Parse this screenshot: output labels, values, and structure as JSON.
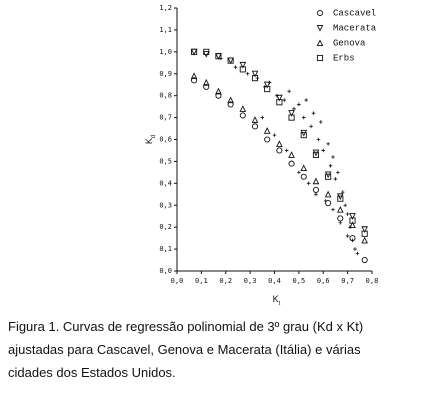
{
  "chart_data": {
    "type": "scatter",
    "xlabel": {
      "main": "K",
      "sub": "t"
    },
    "ylabel": {
      "main": "K",
      "sub": "d"
    },
    "xlim": [
      0,
      0.8
    ],
    "ylim": [
      0,
      1.2
    ],
    "xticks": [
      {
        "value": 0,
        "label": "0,0"
      },
      {
        "value": 0.1,
        "label": "0,1"
      },
      {
        "value": 0.2,
        "label": "0,2"
      },
      {
        "value": 0.3,
        "label": "0,3"
      },
      {
        "value": 0.4,
        "label": "0,4"
      },
      {
        "value": 0.5,
        "label": "0,5"
      },
      {
        "value": 0.6,
        "label": "0,6"
      },
      {
        "value": 0.7,
        "label": "0,7"
      },
      {
        "value": 0.8,
        "label": "0,8"
      }
    ],
    "yticks": [
      {
        "value": 0,
        "label": "0,0"
      },
      {
        "value": 0.1,
        "label": "0,1"
      },
      {
        "value": 0.2,
        "label": "0,2"
      },
      {
        "value": 0.3,
        "label": "0,3"
      },
      {
        "value": 0.4,
        "label": "0,4"
      },
      {
        "value": 0.5,
        "label": "0,5"
      },
      {
        "value": 0.6,
        "label": "0,6"
      },
      {
        "value": 0.7,
        "label": "0,7"
      },
      {
        "value": 0.8,
        "label": "0,8"
      },
      {
        "value": 0.9,
        "label": "0,9"
      },
      {
        "value": 1.0,
        "label": "1,0"
      },
      {
        "value": 1.1,
        "label": "1,1"
      },
      {
        "value": 1.2,
        "label": "1,2"
      }
    ],
    "series": [
      {
        "name": "Cascavel",
        "marker": "circle",
        "color": "#111111",
        "x": [
          0.07,
          0.12,
          0.17,
          0.22,
          0.27,
          0.32,
          0.37,
          0.42,
          0.47,
          0.52,
          0.57,
          0.62,
          0.67,
          0.72,
          0.77
        ],
        "values": [
          0.87,
          0.84,
          0.8,
          0.76,
          0.71,
          0.66,
          0.6,
          0.55,
          0.49,
          0.43,
          0.37,
          0.31,
          0.24,
          0.15,
          0.05
        ]
      },
      {
        "name": "Macerata",
        "marker": "triangle-down",
        "color": "#111111",
        "x": [
          0.07,
          0.12,
          0.17,
          0.22,
          0.27,
          0.32,
          0.37,
          0.42,
          0.47,
          0.52,
          0.57,
          0.62,
          0.67,
          0.72,
          0.77
        ],
        "values": [
          1.0,
          0.99,
          0.98,
          0.96,
          0.94,
          0.9,
          0.85,
          0.79,
          0.72,
          0.63,
          0.54,
          0.44,
          0.34,
          0.25,
          0.19
        ]
      },
      {
        "name": "Genova",
        "marker": "triangle-up",
        "color": "#111111",
        "x": [
          0.07,
          0.12,
          0.17,
          0.22,
          0.27,
          0.32,
          0.37,
          0.42,
          0.47,
          0.52,
          0.57,
          0.62,
          0.67,
          0.72,
          0.77
        ],
        "values": [
          0.89,
          0.86,
          0.82,
          0.78,
          0.74,
          0.69,
          0.64,
          0.58,
          0.53,
          0.47,
          0.41,
          0.35,
          0.28,
          0.21,
          0.14
        ]
      },
      {
        "name": "Erbs",
        "marker": "square",
        "color": "#111111",
        "x": [
          0.07,
          0.12,
          0.17,
          0.22,
          0.27,
          0.32,
          0.37,
          0.42,
          0.47,
          0.52,
          0.57,
          0.62,
          0.67,
          0.72,
          0.77
        ],
        "values": [
          1.0,
          1.0,
          0.98,
          0.96,
          0.92,
          0.88,
          0.83,
          0.77,
          0.7,
          0.62,
          0.53,
          0.43,
          0.33,
          0.23,
          0.17
        ]
      },
      {
        "marker": "plus",
        "color": "#111111",
        "x": [
          0.18,
          0.24,
          0.29,
          0.33,
          0.36,
          0.38,
          0.41,
          0.44,
          0.46,
          0.48,
          0.5,
          0.52,
          0.53,
          0.55,
          0.56,
          0.58,
          0.59,
          0.6,
          0.62,
          0.63,
          0.64,
          0.65,
          0.66,
          0.68,
          0.69,
          0.7,
          0.71,
          0.72,
          0.73,
          0.74,
          0.45,
          0.5,
          0.54,
          0.57,
          0.61,
          0.64,
          0.67,
          0.7,
          0.4,
          0.35
        ],
        "values": [
          0.97,
          0.93,
          0.9,
          0.88,
          0.84,
          0.86,
          0.8,
          0.78,
          0.82,
          0.74,
          0.76,
          0.7,
          0.78,
          0.66,
          0.72,
          0.6,
          0.68,
          0.55,
          0.58,
          0.48,
          0.52,
          0.42,
          0.45,
          0.36,
          0.3,
          0.26,
          0.2,
          0.14,
          0.1,
          0.08,
          0.55,
          0.45,
          0.4,
          0.35,
          0.32,
          0.28,
          0.22,
          0.16,
          0.62,
          0.7
        ]
      }
    ],
    "legend": "top-right",
    "caption": [
      "Figura 1. Curvas de regressão polinomial de 3º grau (Kd x Kt)",
      "ajustadas para Cascavel, Genova e Macerata (Itália) e várias",
      "cidades dos Estados Unidos."
    ]
  }
}
